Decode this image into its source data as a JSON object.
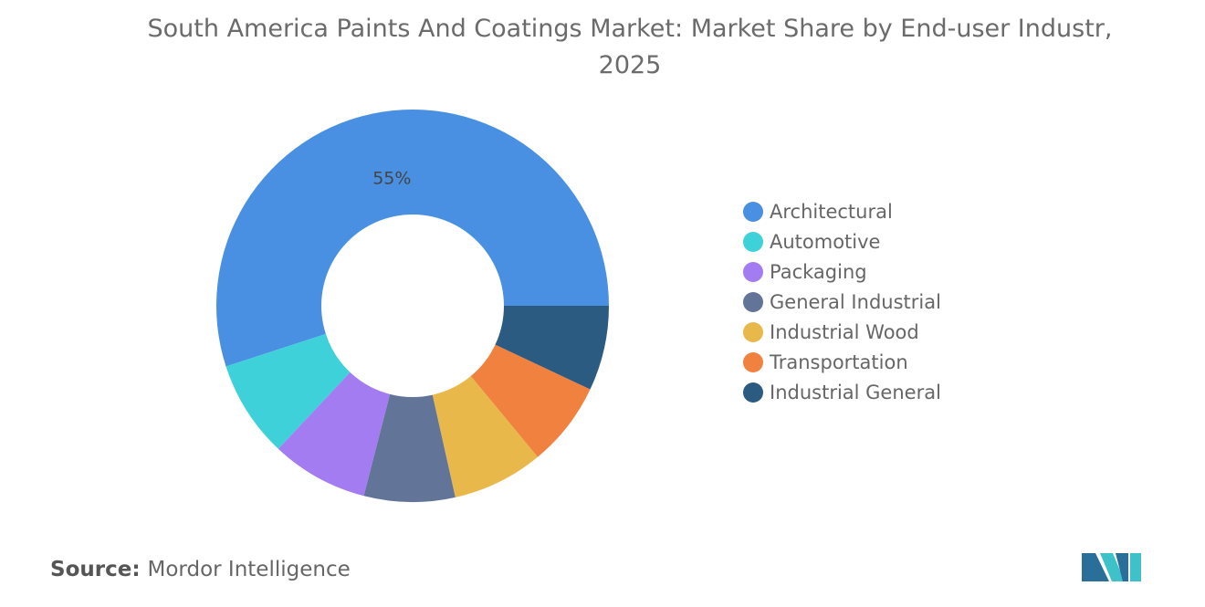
{
  "chart_data": {
    "type": "donut",
    "title": "South America Paints And Coatings Market: Market Share by End-user Industr, 2025",
    "categories": [
      "Architectural",
      "Automotive",
      "Packaging",
      "General Industrial",
      "Industrial Wood",
      "Transportation",
      "Industrial General"
    ],
    "values": [
      55,
      8,
      8,
      7.5,
      7.5,
      7,
      7
    ],
    "value_labels": [
      "55%",
      null,
      null,
      null,
      null,
      null,
      null
    ],
    "colors": [
      "#4a90e2",
      "#3fd1d9",
      "#a47cf2",
      "#627598",
      "#e9b84a",
      "#f0813f",
      "#2b5b80"
    ],
    "legend": "right"
  },
  "source": {
    "label": "Source:",
    "text": "Mordor Intelligence"
  }
}
